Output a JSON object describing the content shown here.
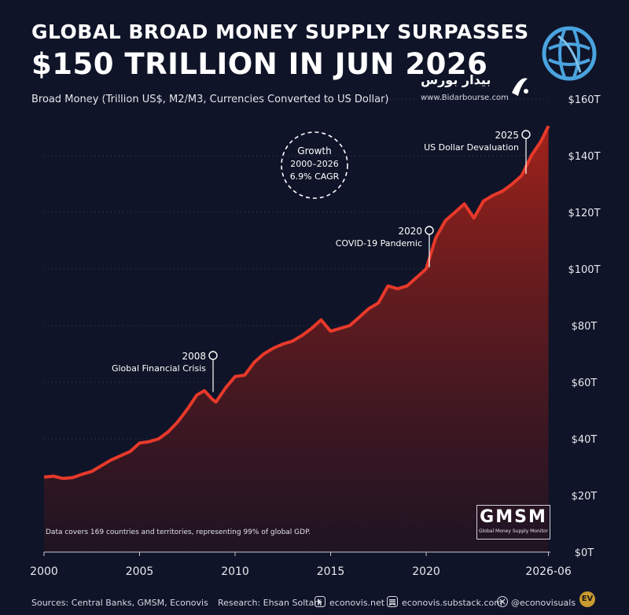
{
  "header": {
    "title_line1": "GLOBAL BROAD MONEY SUPPLY SURPASSES",
    "title_line2": "$150 TRILLION IN JUN 2026",
    "subtitle": "Broad Money (Trillion US$, M2/M3, Currencies Converted to US Dollar)"
  },
  "watermark": {
    "name": "بیدار بورس",
    "url": "www.Bidarbourse.com"
  },
  "growth_badge": {
    "line1": "Growth",
    "line2": "2000–2026",
    "line3": "6.9% CAGR"
  },
  "annotations": [
    {
      "year_label": "2008",
      "text": "Global Financial Crisis",
      "x": 2008.9,
      "y": 56
    },
    {
      "year_label": "2020",
      "text": "COVID-19 Pandemic",
      "x": 2020.0,
      "y": 100
    },
    {
      "year_label": "2025",
      "text": "US Dollar Devaluation",
      "x": 2025.3,
      "y": 133
    }
  ],
  "note": "Data covers 169 countries and territories, representing 99% of global GDP.",
  "gmsm": {
    "big": "GMSM",
    "small": "Global Money Supply Monitor"
  },
  "footer": {
    "sources": "Sources: Central Banks, GMSM, Econovis",
    "research": "Research: Ehsan Soltani",
    "site1": "econovis.net",
    "site2": "econovis.substack.com",
    "handle": "@econovisuals",
    "ev": "EV"
  },
  "colors": {
    "background": "#0f1428",
    "line": "#e8392a",
    "fill_top": "#a8231a",
    "fill_bottom": "#1a1424"
  },
  "chart_data": {
    "type": "area",
    "xlabel": "",
    "ylabel": "",
    "xlim": [
      2000,
      2026.5
    ],
    "ylim": [
      0,
      160
    ],
    "x_ticks": [
      {
        "v": 2000,
        "label": "2000"
      },
      {
        "v": 2005,
        "label": "2005"
      },
      {
        "v": 2010,
        "label": "2010"
      },
      {
        "v": 2015,
        "label": "2015"
      },
      {
        "v": 2020,
        "label": "2020"
      },
      {
        "v": 2026.4,
        "label": "2026-06"
      }
    ],
    "y_ticks": [
      {
        "v": 0,
        "label": "$0T"
      },
      {
        "v": 20,
        "label": "$20T"
      },
      {
        "v": 40,
        "label": "$40T"
      },
      {
        "v": 60,
        "label": "$60T"
      },
      {
        "v": 80,
        "label": "$80T"
      },
      {
        "v": 100,
        "label": "$100T"
      },
      {
        "v": 120,
        "label": "$120T"
      },
      {
        "v": 140,
        "label": "$140T"
      },
      {
        "v": 160,
        "label": "$160T"
      }
    ],
    "grid": "horizontal dotted",
    "series": [
      {
        "values": [
          [
            2000.0,
            26.5
          ],
          [
            2000.5,
            26.8
          ],
          [
            2001.0,
            26.0
          ],
          [
            2001.5,
            26.3
          ],
          [
            2002.0,
            27.5
          ],
          [
            2002.5,
            28.5
          ],
          [
            2003.0,
            30.5
          ],
          [
            2003.5,
            32.5
          ],
          [
            2004.0,
            34.0
          ],
          [
            2004.5,
            35.5
          ],
          [
            2005.0,
            38.5
          ],
          [
            2005.5,
            39.0
          ],
          [
            2006.0,
            40.0
          ],
          [
            2006.5,
            42.5
          ],
          [
            2007.0,
            46.0
          ],
          [
            2007.5,
            50.5
          ],
          [
            2008.0,
            55.5
          ],
          [
            2008.4,
            57.0
          ],
          [
            2008.8,
            54.0
          ],
          [
            2009.0,
            53.0
          ],
          [
            2009.5,
            58.0
          ],
          [
            2010.0,
            62.0
          ],
          [
            2010.5,
            62.5
          ],
          [
            2011.0,
            67.0
          ],
          [
            2011.5,
            70.0
          ],
          [
            2012.0,
            72.0
          ],
          [
            2012.5,
            73.5
          ],
          [
            2013.0,
            74.5
          ],
          [
            2013.5,
            76.5
          ],
          [
            2014.0,
            79.0
          ],
          [
            2014.5,
            82.0
          ],
          [
            2015.0,
            78.0
          ],
          [
            2015.5,
            79.0
          ],
          [
            2016.0,
            80.0
          ],
          [
            2016.5,
            83.0
          ],
          [
            2017.0,
            86.0
          ],
          [
            2017.5,
            88.0
          ],
          [
            2018.0,
            94.0
          ],
          [
            2018.5,
            93.0
          ],
          [
            2019.0,
            94.0
          ],
          [
            2019.5,
            97.0
          ],
          [
            2020.0,
            100.0
          ],
          [
            2020.5,
            111.0
          ],
          [
            2021.0,
            117.0
          ],
          [
            2021.5,
            120.0
          ],
          [
            2022.0,
            123.0
          ],
          [
            2022.5,
            118.0
          ],
          [
            2023.0,
            124.0
          ],
          [
            2023.5,
            126.0
          ],
          [
            2024.0,
            127.5
          ],
          [
            2024.5,
            130.0
          ],
          [
            2025.0,
            133.0
          ],
          [
            2025.5,
            140.0
          ],
          [
            2026.0,
            145.0
          ],
          [
            2026.4,
            150.5
          ]
        ]
      }
    ]
  }
}
